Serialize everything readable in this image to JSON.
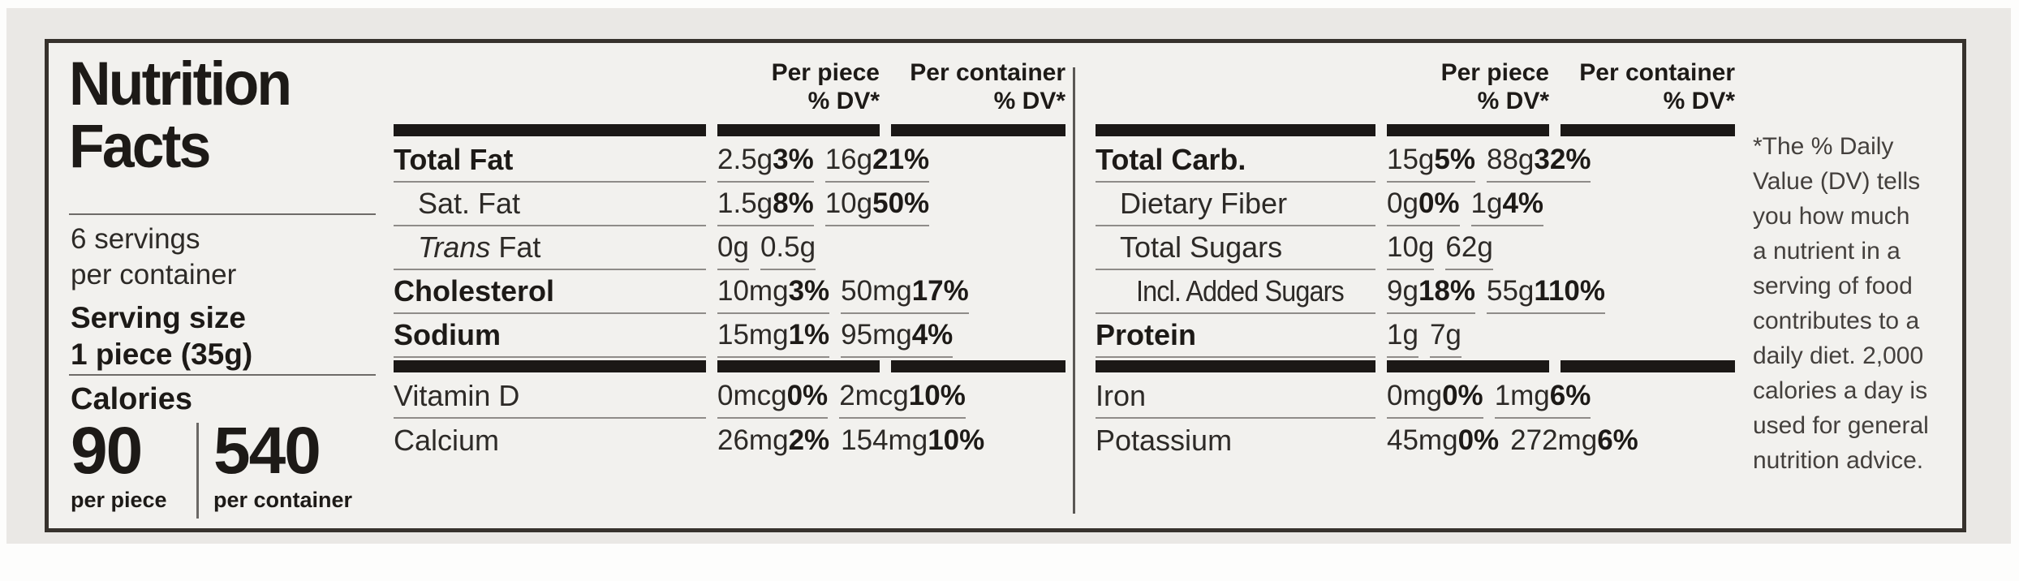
{
  "label": {
    "title_line1": "Nutrition",
    "title_line2": "Facts",
    "servings_line1": "6 servings",
    "servings_line2": "per container",
    "serving_size_label": "Serving size",
    "serving_size_value": "1 piece (35g)",
    "calories_label": "Calories",
    "calories": [
      {
        "value": "90",
        "unit": "per piece"
      },
      {
        "value": "540",
        "unit": "per container"
      }
    ]
  },
  "columns": {
    "per_piece": "Per piece",
    "per_container": "Per container",
    "dv": "% DV*"
  },
  "tables": [
    {
      "id": "left",
      "rows": [
        {
          "label": "Total Fat",
          "bold": true,
          "piece_amt": "2.5g",
          "piece_dv": "3%",
          "cont_amt": "16g",
          "cont_dv": "21%"
        },
        {
          "label": "Sat. Fat",
          "indent": 1,
          "piece_amt": "1.5g",
          "piece_dv": "8%",
          "cont_amt": "10g",
          "cont_dv": "50%"
        },
        {
          "label": "Fat",
          "label_italic": "Trans",
          "indent": 1,
          "piece_amt": "0g",
          "piece_dv": "",
          "cont_amt": "0.5g",
          "cont_dv": ""
        },
        {
          "label": "Cholesterol",
          "bold": true,
          "piece_amt": "10mg",
          "piece_dv": "3%",
          "cont_amt": "50mg",
          "cont_dv": "17%"
        },
        {
          "label": "Sodium",
          "bold": true,
          "piece_amt": "15mg",
          "piece_dv": "1%",
          "cont_amt": "95mg",
          "cont_dv": "4%",
          "bar_after": true
        },
        {
          "label": "Vitamin D",
          "piece_amt": "0mcg",
          "piece_dv": "0%",
          "cont_amt": "2mcg",
          "cont_dv": "10%"
        },
        {
          "label": "Calcium",
          "piece_amt": "26mg",
          "piece_dv": "2%",
          "cont_amt": "154mg",
          "cont_dv": "10%",
          "last": true
        }
      ]
    },
    {
      "id": "right",
      "rows": [
        {
          "label": "Total Carb.",
          "bold": true,
          "piece_amt": "15g",
          "piece_dv": "5%",
          "cont_amt": "88g",
          "cont_dv": "32%"
        },
        {
          "label": "Dietary Fiber",
          "indent": 1,
          "piece_amt": "0g",
          "piece_dv": "0%",
          "cont_amt": "1g",
          "cont_dv": "4%"
        },
        {
          "label": "Total Sugars",
          "indent": 1,
          "piece_amt": "10g",
          "piece_dv": "",
          "cont_amt": "62g",
          "cont_dv": ""
        },
        {
          "label": "Incl. Added Sugars",
          "indent": 2,
          "piece_amt": "9g",
          "piece_dv": "18%",
          "cont_amt": "55g",
          "cont_dv": "110%"
        },
        {
          "label": "Protein",
          "bold": true,
          "piece_amt": "1g",
          "piece_dv": "",
          "cont_amt": "7g",
          "cont_dv": "",
          "bar_after": true
        },
        {
          "label": "Iron",
          "piece_amt": "0mg",
          "piece_dv": "0%",
          "cont_amt": "1mg",
          "cont_dv": "6%"
        },
        {
          "label": "Potassium",
          "piece_amt": "45mg",
          "piece_dv": "0%",
          "cont_amt": "272mg",
          "cont_dv": "6%",
          "last": true
        }
      ]
    }
  ],
  "footnote": "*The % Daily\nValue (DV) tells\nyou how much\na nutrient in a\nserving of food\ncontributes to a\ndaily diet. 2,000\ncalories a day is\nused for general\nnutrition advice.",
  "colors": {
    "bar": "#1b1816",
    "rule": "#8f8c89",
    "ink": "#26221f"
  }
}
